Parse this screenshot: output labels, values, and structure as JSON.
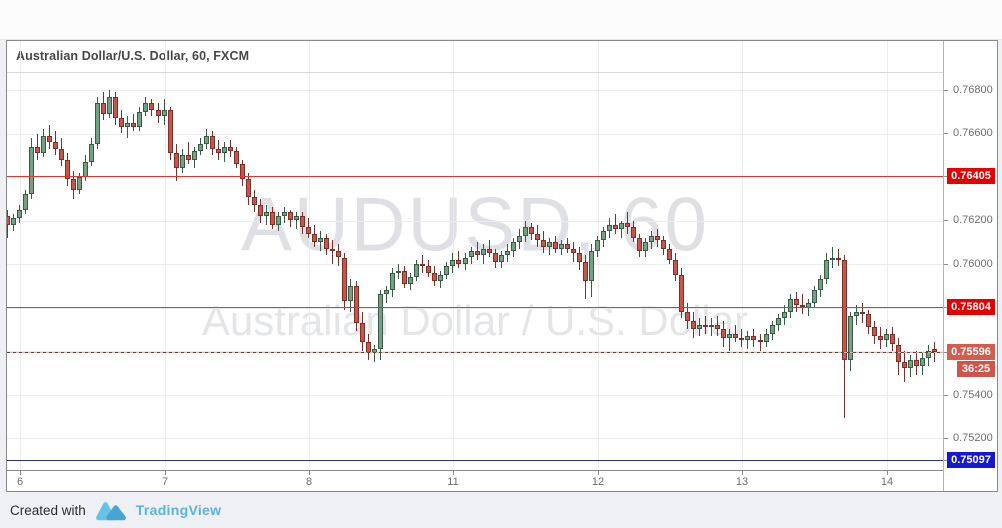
{
  "header": {
    "title": "Australian Dollar/U.S. Dollar, 60, FXCM"
  },
  "watermark": {
    "line1": "AUDUSD, 60",
    "line2": "Australian Dollar / U.S. Dollar"
  },
  "footer": {
    "created_with": "Created with",
    "brand": "TradingView",
    "brand_color": "#59b2dd",
    "logo_icon": "tradingview-cloud-logo"
  },
  "price_axis": {
    "ticks": [
      {
        "label": "0.76800",
        "value": 0.768
      },
      {
        "label": "0.76600",
        "value": 0.766
      },
      {
        "label": "0.76200",
        "value": 0.762
      },
      {
        "label": "0.76000",
        "value": 0.76
      },
      {
        "label": "0.75400",
        "value": 0.754
      },
      {
        "label": "0.75200",
        "value": 0.752
      }
    ]
  },
  "time_axis": {
    "labels": [
      {
        "text": "6",
        "candle_index": 2
      },
      {
        "text": "7",
        "candle_index": 26
      },
      {
        "text": "8",
        "candle_index": 50
      },
      {
        "text": "11",
        "candle_index": 74
      },
      {
        "text": "12",
        "candle_index": 98
      },
      {
        "text": "13",
        "candle_index": 122
      },
      {
        "text": "14",
        "candle_index": 146
      }
    ]
  },
  "lines": [
    {
      "id": "resistance-upper",
      "value": 0.76405,
      "label": "0.76405",
      "style": "solid",
      "line_color": "#e03535",
      "label_bg": "#e60000"
    },
    {
      "id": "resistance-lower",
      "value": 0.75804,
      "label": "0.75804",
      "style": "solid",
      "line_color": "#e03535",
      "label_bg": "#e60000"
    },
    {
      "id": "current-price",
      "value": 0.75596,
      "label": "0.75596",
      "style": "dashed",
      "line_color": "#8a4a42",
      "label_bg": "#d65c4e",
      "countdown": "36:25",
      "countdown_bg": "#d0544a"
    },
    {
      "id": "support",
      "value": 0.75097,
      "label": "0.75097",
      "style": "solid",
      "line_color": "#2b3190",
      "label_bg": "#1717d6"
    }
  ],
  "chart_data": {
    "type": "candlestick",
    "symbol": "AUDUSD",
    "interval": "60",
    "exchange": "FXCM",
    "title": "Australian Dollar/U.S. Dollar, 60, FXCM",
    "visible_price_range": [
      0.75053,
      0.76878
    ],
    "price_gridlines": [
      0.768,
      0.766,
      0.764,
      0.762,
      0.76,
      0.758,
      0.756,
      0.754,
      0.752
    ],
    "last_price": 0.75596,
    "colors": {
      "up": "#74a184",
      "up_border": "#3a5c46",
      "down": "#c4574a",
      "down_border": "#7f2f27"
    },
    "candles": [
      [
        0.7622,
        0.7625,
        0.7612,
        0.7618
      ],
      [
        0.7618,
        0.7623,
        0.7615,
        0.7621
      ],
      [
        0.7621,
        0.7627,
        0.7619,
        0.7625
      ],
      [
        0.7625,
        0.7634,
        0.7623,
        0.7632
      ],
      [
        0.7632,
        0.7658,
        0.763,
        0.7654
      ],
      [
        0.7654,
        0.766,
        0.7648,
        0.7651
      ],
      [
        0.7651,
        0.7662,
        0.7649,
        0.7659
      ],
      [
        0.7659,
        0.7664,
        0.7653,
        0.7656
      ],
      [
        0.7656,
        0.7661,
        0.765,
        0.7653
      ],
      [
        0.7653,
        0.7658,
        0.7645,
        0.7648
      ],
      [
        0.7648,
        0.7651,
        0.7636,
        0.7639
      ],
      [
        0.7639,
        0.7643,
        0.763,
        0.7634
      ],
      [
        0.7634,
        0.7642,
        0.7632,
        0.764
      ],
      [
        0.764,
        0.765,
        0.7638,
        0.7647
      ],
      [
        0.7647,
        0.7658,
        0.7645,
        0.7655
      ],
      [
        0.7655,
        0.7677,
        0.7653,
        0.7674
      ],
      [
        0.7674,
        0.7679,
        0.7666,
        0.7669
      ],
      [
        0.7669,
        0.768,
        0.7667,
        0.7677
      ],
      [
        0.7677,
        0.7679,
        0.7664,
        0.7667
      ],
      [
        0.7667,
        0.7671,
        0.766,
        0.7663
      ],
      [
        0.7663,
        0.7668,
        0.7658,
        0.7665
      ],
      [
        0.7665,
        0.7669,
        0.7661,
        0.7663
      ],
      [
        0.7663,
        0.7672,
        0.7661,
        0.767
      ],
      [
        0.767,
        0.7677,
        0.7668,
        0.7674
      ],
      [
        0.7674,
        0.7676,
        0.7668,
        0.7671
      ],
      [
        0.7671,
        0.7674,
        0.7665,
        0.7668
      ],
      [
        0.7668,
        0.7676,
        0.7664,
        0.7671
      ],
      [
        0.7671,
        0.7672,
        0.7648,
        0.7651
      ],
      [
        0.7651,
        0.7655,
        0.7638,
        0.7644
      ],
      [
        0.7644,
        0.7653,
        0.7642,
        0.765
      ],
      [
        0.765,
        0.7656,
        0.7646,
        0.7648
      ],
      [
        0.7648,
        0.7654,
        0.7644,
        0.7652
      ],
      [
        0.7652,
        0.7658,
        0.765,
        0.7655
      ],
      [
        0.7655,
        0.7662,
        0.7653,
        0.7659
      ],
      [
        0.7659,
        0.7661,
        0.765,
        0.7653
      ],
      [
        0.7653,
        0.7657,
        0.7648,
        0.7651
      ],
      [
        0.7651,
        0.7656,
        0.7647,
        0.7654
      ],
      [
        0.7654,
        0.7657,
        0.7649,
        0.7652
      ],
      [
        0.7652,
        0.7654,
        0.7644,
        0.7646
      ],
      [
        0.7646,
        0.7648,
        0.7636,
        0.7639
      ],
      [
        0.7639,
        0.7642,
        0.7627,
        0.7631
      ],
      [
        0.7631,
        0.7634,
        0.7624,
        0.7627
      ],
      [
        0.7627,
        0.763,
        0.7619,
        0.7622
      ],
      [
        0.7622,
        0.7627,
        0.7618,
        0.7624
      ],
      [
        0.7624,
        0.7626,
        0.7616,
        0.7618
      ],
      [
        0.7618,
        0.7624,
        0.7615,
        0.7622
      ],
      [
        0.7622,
        0.7626,
        0.7619,
        0.7624
      ],
      [
        0.7624,
        0.7625,
        0.7617,
        0.762
      ],
      [
        0.762,
        0.7624,
        0.7616,
        0.7622
      ],
      [
        0.7622,
        0.7624,
        0.7614,
        0.7617
      ],
      [
        0.7617,
        0.7621,
        0.7612,
        0.7614
      ],
      [
        0.7614,
        0.7618,
        0.7608,
        0.761
      ],
      [
        0.761,
        0.7615,
        0.7606,
        0.7612
      ],
      [
        0.7612,
        0.7614,
        0.7604,
        0.7607
      ],
      [
        0.7607,
        0.7611,
        0.76,
        0.7606
      ],
      [
        0.7606,
        0.7609,
        0.7599,
        0.7603
      ],
      [
        0.7603,
        0.7605,
        0.7579,
        0.7583
      ],
      [
        0.7583,
        0.7593,
        0.7578,
        0.759
      ],
      [
        0.759,
        0.7592,
        0.7569,
        0.7573
      ],
      [
        0.7573,
        0.7578,
        0.756,
        0.7564
      ],
      [
        0.7564,
        0.7568,
        0.7556,
        0.7559
      ],
      [
        0.7559,
        0.7563,
        0.7555,
        0.7561
      ],
      [
        0.7561,
        0.7588,
        0.7556,
        0.7586
      ],
      [
        0.7586,
        0.759,
        0.7582,
        0.7588
      ],
      [
        0.7588,
        0.7598,
        0.7585,
        0.7596
      ],
      [
        0.7596,
        0.76,
        0.7593,
        0.7597
      ],
      [
        0.7597,
        0.7599,
        0.7589,
        0.7591
      ],
      [
        0.7591,
        0.7596,
        0.7588,
        0.7594
      ],
      [
        0.7594,
        0.7602,
        0.7592,
        0.76
      ],
      [
        0.76,
        0.7604,
        0.7596,
        0.7599
      ],
      [
        0.7599,
        0.7602,
        0.7594,
        0.7596
      ],
      [
        0.7596,
        0.7599,
        0.759,
        0.7592
      ],
      [
        0.7592,
        0.7597,
        0.7589,
        0.7595
      ],
      [
        0.7595,
        0.7601,
        0.7593,
        0.7599
      ],
      [
        0.7599,
        0.7605,
        0.7596,
        0.7602
      ],
      [
        0.7602,
        0.7606,
        0.7598,
        0.76
      ],
      [
        0.76,
        0.7605,
        0.7597,
        0.7603
      ],
      [
        0.7603,
        0.7608,
        0.76,
        0.7606
      ],
      [
        0.7606,
        0.761,
        0.7602,
        0.7604
      ],
      [
        0.7604,
        0.7609,
        0.76,
        0.7607
      ],
      [
        0.7607,
        0.7611,
        0.7603,
        0.7605
      ],
      [
        0.7605,
        0.7607,
        0.7598,
        0.7601
      ],
      [
        0.7601,
        0.7606,
        0.7598,
        0.7604
      ],
      [
        0.7604,
        0.7609,
        0.7601,
        0.7606
      ],
      [
        0.7606,
        0.7612,
        0.7603,
        0.761
      ],
      [
        0.761,
        0.7616,
        0.7607,
        0.7613
      ],
      [
        0.7613,
        0.762,
        0.761,
        0.7617
      ],
      [
        0.7617,
        0.7619,
        0.7611,
        0.7614
      ],
      [
        0.7614,
        0.7618,
        0.7608,
        0.7611
      ],
      [
        0.7611,
        0.7615,
        0.7605,
        0.7608
      ],
      [
        0.7608,
        0.7612,
        0.7604,
        0.761
      ],
      [
        0.761,
        0.7613,
        0.7605,
        0.7607
      ],
      [
        0.7607,
        0.7611,
        0.7604,
        0.7609
      ],
      [
        0.7609,
        0.7612,
        0.7605,
        0.7607
      ],
      [
        0.7607,
        0.761,
        0.7601,
        0.7605
      ],
      [
        0.7605,
        0.7608,
        0.7597,
        0.7601
      ],
      [
        0.7601,
        0.7604,
        0.7584,
        0.7592
      ],
      [
        0.7592,
        0.7609,
        0.7585,
        0.7606
      ],
      [
        0.7606,
        0.7613,
        0.7603,
        0.7611
      ],
      [
        0.7611,
        0.7617,
        0.7608,
        0.7615
      ],
      [
        0.7615,
        0.7621,
        0.7612,
        0.7618
      ],
      [
        0.7618,
        0.7623,
        0.7614,
        0.7616
      ],
      [
        0.7616,
        0.762,
        0.7612,
        0.7619
      ],
      [
        0.7619,
        0.7624,
        0.7614,
        0.7617
      ],
      [
        0.7617,
        0.762,
        0.761,
        0.7612
      ],
      [
        0.7612,
        0.7614,
        0.7603,
        0.7606
      ],
      [
        0.7606,
        0.7612,
        0.7603,
        0.761
      ],
      [
        0.761,
        0.7615,
        0.7607,
        0.7613
      ],
      [
        0.7613,
        0.7616,
        0.7608,
        0.7611
      ],
      [
        0.7611,
        0.7613,
        0.7604,
        0.7607
      ],
      [
        0.7607,
        0.7609,
        0.76,
        0.7602
      ],
      [
        0.7602,
        0.7605,
        0.7592,
        0.7595
      ],
      [
        0.7595,
        0.7598,
        0.7575,
        0.7578
      ],
      [
        0.7578,
        0.7582,
        0.757,
        0.7574
      ],
      [
        0.7574,
        0.7578,
        0.7566,
        0.757
      ],
      [
        0.757,
        0.7575,
        0.7567,
        0.7572
      ],
      [
        0.7572,
        0.7576,
        0.7568,
        0.7571
      ],
      [
        0.7571,
        0.7575,
        0.7567,
        0.7572
      ],
      [
        0.7572,
        0.7576,
        0.7567,
        0.757
      ],
      [
        0.757,
        0.7574,
        0.7562,
        0.7566
      ],
      [
        0.7566,
        0.757,
        0.756,
        0.7568
      ],
      [
        0.7568,
        0.7572,
        0.7564,
        0.7566
      ],
      [
        0.7566,
        0.757,
        0.7562,
        0.7565
      ],
      [
        0.7565,
        0.7569,
        0.7561,
        0.7567
      ],
      [
        0.7567,
        0.757,
        0.7562,
        0.7565
      ],
      [
        0.7565,
        0.7568,
        0.756,
        0.7564
      ],
      [
        0.7564,
        0.757,
        0.7562,
        0.7568
      ],
      [
        0.7568,
        0.7574,
        0.7565,
        0.7572
      ],
      [
        0.7572,
        0.7577,
        0.7569,
        0.7575
      ],
      [
        0.7575,
        0.7581,
        0.7572,
        0.7578
      ],
      [
        0.7578,
        0.7586,
        0.7575,
        0.7584
      ],
      [
        0.7584,
        0.7587,
        0.7578,
        0.7581
      ],
      [
        0.7581,
        0.7586,
        0.7577,
        0.758
      ],
      [
        0.758,
        0.7584,
        0.7576,
        0.7582
      ],
      [
        0.7582,
        0.759,
        0.758,
        0.7588
      ],
      [
        0.7588,
        0.7595,
        0.7585,
        0.7593
      ],
      [
        0.7593,
        0.7605,
        0.7591,
        0.7602
      ],
      [
        0.7602,
        0.7608,
        0.7598,
        0.7603
      ],
      [
        0.7603,
        0.7607,
        0.7599,
        0.7602
      ],
      [
        0.7602,
        0.7604,
        0.7529,
        0.7556
      ],
      [
        0.7556,
        0.7578,
        0.7551,
        0.7576
      ],
      [
        0.7576,
        0.7581,
        0.7572,
        0.7578
      ],
      [
        0.7578,
        0.7582,
        0.7573,
        0.7577
      ],
      [
        0.7577,
        0.7579,
        0.7568,
        0.7571
      ],
      [
        0.7571,
        0.7574,
        0.7563,
        0.7567
      ],
      [
        0.7567,
        0.7571,
        0.7561,
        0.7565
      ],
      [
        0.7565,
        0.757,
        0.7562,
        0.7568
      ],
      [
        0.7568,
        0.7571,
        0.756,
        0.7563
      ],
      [
        0.7563,
        0.7566,
        0.7549,
        0.7555
      ],
      [
        0.7555,
        0.756,
        0.7546,
        0.7552
      ],
      [
        0.7552,
        0.7558,
        0.7548,
        0.7556
      ],
      [
        0.7556,
        0.756,
        0.7549,
        0.7553
      ],
      [
        0.7553,
        0.7559,
        0.7549,
        0.7557
      ],
      [
        0.7557,
        0.7563,
        0.7553,
        0.756
      ],
      [
        0.7561,
        0.7564,
        0.7555,
        0.75596
      ]
    ]
  }
}
